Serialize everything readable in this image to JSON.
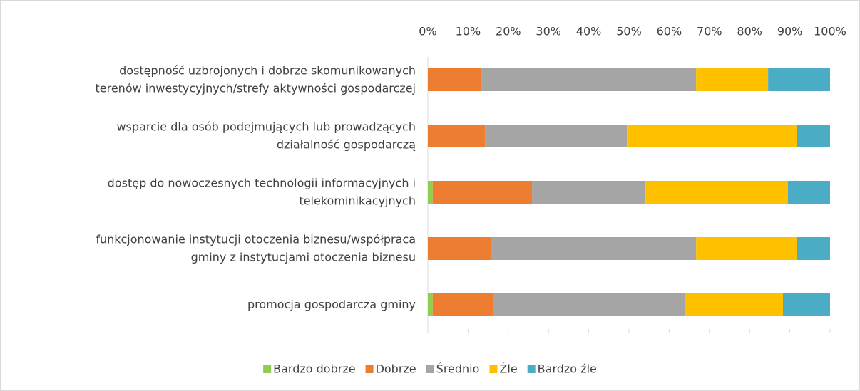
{
  "chart_data": {
    "type": "stacked_barh",
    "categories": [
      [
        "dostępność uzbrojonych i dobrze skomunikowanych",
        "terenów inwestycyjnych/strefy aktywności gospodarczej"
      ],
      [
        "wsparcie dla osób podejmujących lub prowadzących",
        "działalność gospodarczą"
      ],
      [
        "dostęp do nowoczesnych technologii informacyjnych i",
        "telekominikacyjnych"
      ],
      [
        "funkcjonowanie instytucji otoczenia biznesu/współpraca",
        "gminy z instytucjami otoczenia biznesu"
      ],
      [
        "promocja gospodarcza gminy"
      ]
    ],
    "series": [
      {
        "name": "Bardzo dobrze",
        "color": "#8fce4f",
        "values": [
          0,
          0,
          1.2,
          0,
          1.2
        ]
      },
      {
        "name": "Dobrze",
        "color": "#ed7d31",
        "values": [
          13.3,
          14.2,
          24.7,
          15.6,
          15.1
        ]
      },
      {
        "name": "Średnio",
        "color": "#a5a5a5",
        "values": [
          53.4,
          35.3,
          28.2,
          51.1,
          47.7
        ]
      },
      {
        "name": "Źle",
        "color": "#ffc000",
        "values": [
          17.9,
          42.3,
          35.4,
          25.0,
          24.3
        ]
      },
      {
        "name": "Bardzo źle",
        "color": "#4bacc6",
        "values": [
          15.4,
          8.2,
          10.5,
          8.3,
          11.7
        ]
      }
    ],
    "xlim": [
      0,
      100
    ],
    "xticks": [
      {
        "value": 0,
        "label": "0%"
      },
      {
        "value": 10,
        "label": "10%"
      },
      {
        "value": 20,
        "label": "20%"
      },
      {
        "value": 30,
        "label": "30%"
      },
      {
        "value": 40,
        "label": "40%"
      },
      {
        "value": 50,
        "label": "50%"
      },
      {
        "value": 60,
        "label": "60%"
      },
      {
        "value": 70,
        "label": "70%"
      },
      {
        "value": 80,
        "label": "80%"
      },
      {
        "value": 90,
        "label": "90%"
      },
      {
        "value": 100,
        "label": "100%"
      }
    ],
    "legend": "bottom"
  }
}
